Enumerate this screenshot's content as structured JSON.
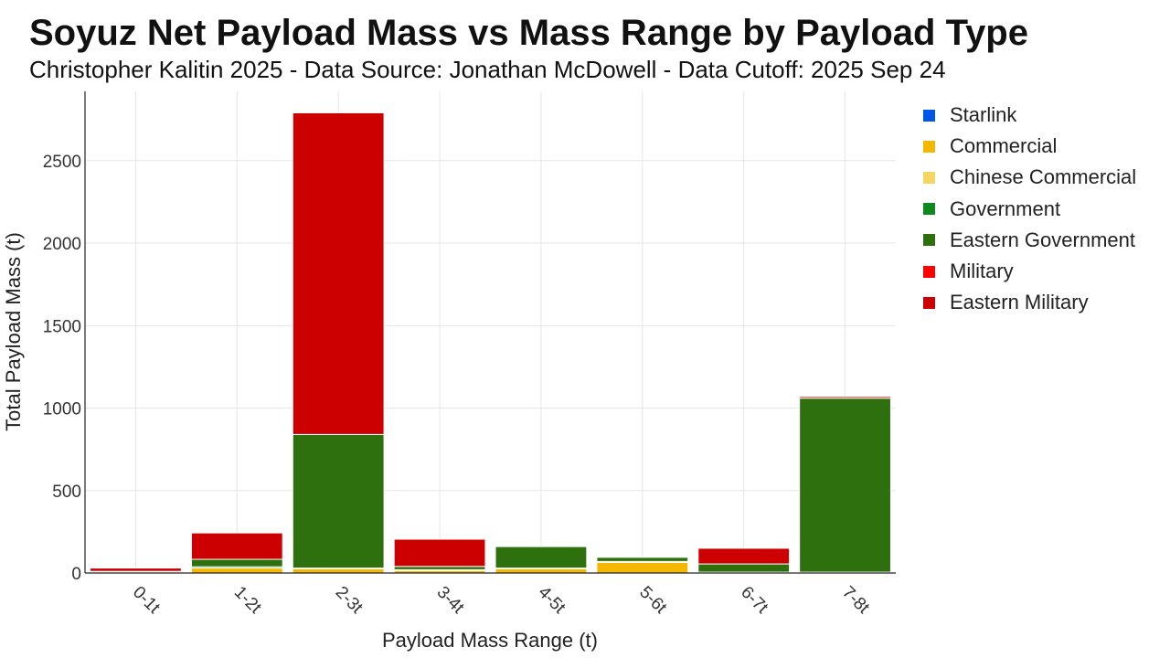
{
  "title": "Soyuz Net Payload Mass vs Mass Range by Payload Type",
  "subtitle": "Christopher Kalitin 2025 - Data Source: Jonathan McDowell - Data Cutoff: 2025 Sep 24",
  "chart_data": {
    "type": "bar",
    "stacked": true,
    "xlabel": "Payload Mass Range (t)",
    "ylabel": "Total Payload Mass (t)",
    "ylim": [
      0,
      2920
    ],
    "yticks": [
      0,
      500,
      1000,
      1500,
      2000,
      2500
    ],
    "grid": true,
    "legend_position": "right",
    "categories": [
      "0-1t",
      "1-2t",
      "2-3t",
      "3-4t",
      "4-5t",
      "5-6t",
      "6-7t",
      "7-8t"
    ],
    "series": [
      {
        "name": "Starlink",
        "color": "#0057e7",
        "values": [
          0,
          0,
          0,
          0,
          0,
          0,
          0,
          0
        ]
      },
      {
        "name": "Commercial",
        "color": "#f5b800",
        "values": [
          2,
          30,
          25,
          15,
          25,
          65,
          0,
          0
        ]
      },
      {
        "name": "Chinese Commercial",
        "color": "#f6d562",
        "values": [
          0,
          0,
          0,
          0,
          0,
          0,
          0,
          0
        ]
      },
      {
        "name": "Government",
        "color": "#0d8a1f",
        "values": [
          3,
          8,
          5,
          5,
          5,
          5,
          5,
          5
        ]
      },
      {
        "name": "Eastern Government",
        "color": "#2e6f0e",
        "values": [
          5,
          45,
          810,
          20,
          130,
          25,
          50,
          1055
        ]
      },
      {
        "name": "Military",
        "color": "#ff0000",
        "values": [
          0,
          0,
          0,
          0,
          0,
          0,
          0,
          0
        ]
      },
      {
        "name": "Eastern Military",
        "color": "#cc0000",
        "values": [
          20,
          160,
          1950,
          165,
          0,
          0,
          95,
          10
        ]
      }
    ]
  }
}
